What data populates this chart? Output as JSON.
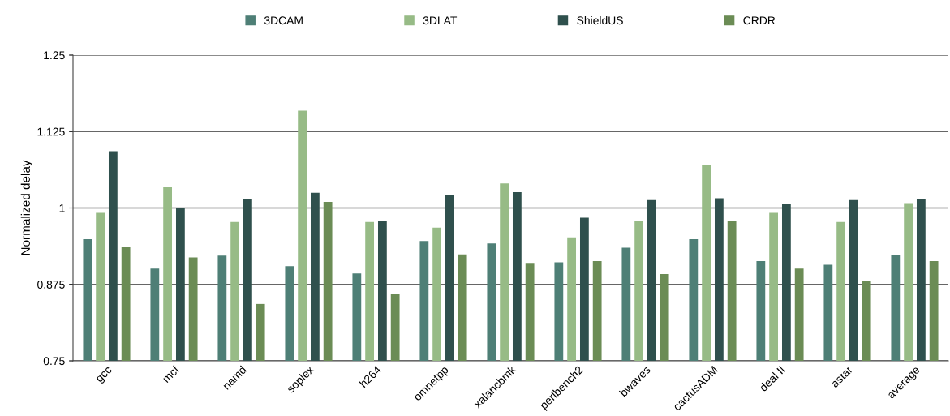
{
  "chart_data": {
    "type": "bar",
    "ylabel": "Normalized delay",
    "categories": [
      "gcc",
      "mcf",
      "namd",
      "soplex",
      "h264",
      "omnetpp",
      "xalancbmk",
      "perlbench2",
      "bwaves",
      "cactusADM",
      "deal II",
      "astar",
      "average"
    ],
    "series": [
      {
        "name": "3DCAM",
        "color": "#4e7f76",
        "values": [
          0.949,
          0.901,
          0.922,
          0.905,
          0.893,
          0.946,
          0.942,
          0.911,
          0.935,
          0.949,
          0.913,
          0.907,
          0.923
        ]
      },
      {
        "name": "3DLAT",
        "color": "#97bb86",
        "values": [
          0.992,
          1.034,
          0.977,
          1.159,
          0.977,
          0.968,
          1.04,
          0.952,
          0.979,
          1.07,
          0.992,
          0.977,
          1.008
        ]
      },
      {
        "name": "ShieldUS",
        "color": "#2f504d",
        "values": [
          1.093,
          1.0,
          1.014,
          1.025,
          0.978,
          1.021,
          1.026,
          0.984,
          1.013,
          1.016,
          1.007,
          1.013,
          1.014
        ]
      },
      {
        "name": "CRDR",
        "color": "#6b8c55",
        "values": [
          0.937,
          0.919,
          0.843,
          1.01,
          0.859,
          0.924,
          0.91,
          0.913,
          0.892,
          0.979,
          0.901,
          0.88,
          0.913
        ]
      }
    ],
    "ylim": [
      0.75,
      1.25
    ],
    "yticks": [
      0.75,
      0.875,
      1,
      1.125,
      1.25
    ],
    "grid": "y",
    "legend": "top"
  }
}
